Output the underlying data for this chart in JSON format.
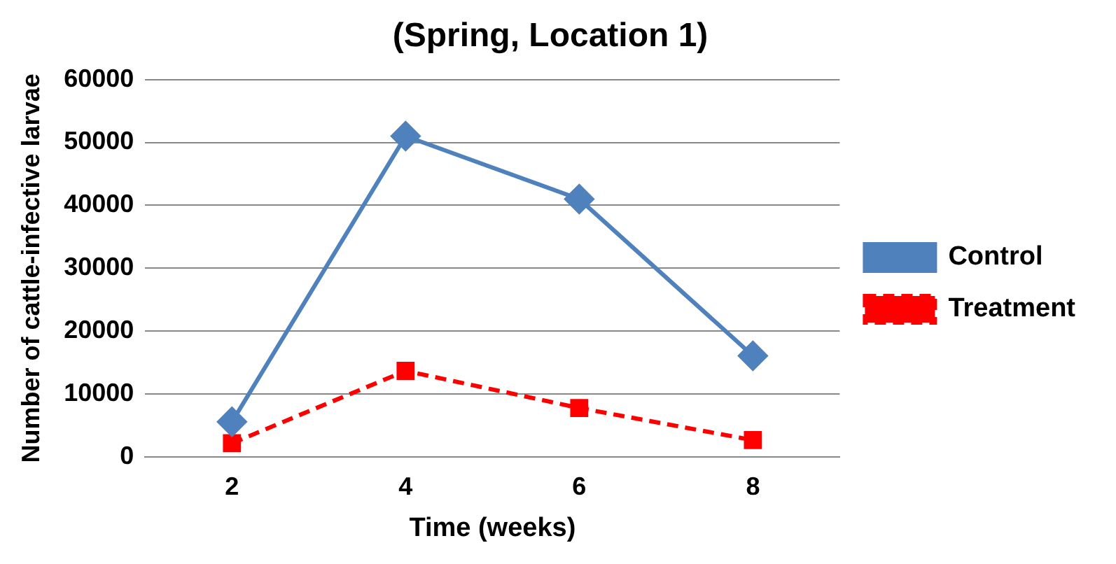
{
  "chart_data": {
    "type": "line",
    "title": "(Spring, Location 1)",
    "xlabel": "Time (weeks)",
    "ylabel": "Number of cattle-infective larvae",
    "categories": [
      "2",
      "4",
      "6",
      "8"
    ],
    "series": [
      {
        "name": "Control",
        "color": "#4f81bd",
        "values": [
          5600,
          51000,
          41000,
          16100
        ],
        "marker": "diamond",
        "line_style": "solid"
      },
      {
        "name": "Treatment",
        "color": "#ff0000",
        "values": [
          2200,
          13700,
          7800,
          2700
        ],
        "marker": "square",
        "line_style": "dashed"
      }
    ],
    "ylim": [
      0,
      60000
    ],
    "yticks": [
      0,
      10000,
      20000,
      30000,
      40000,
      50000,
      60000
    ],
    "grid": "y",
    "legend": "right"
  }
}
